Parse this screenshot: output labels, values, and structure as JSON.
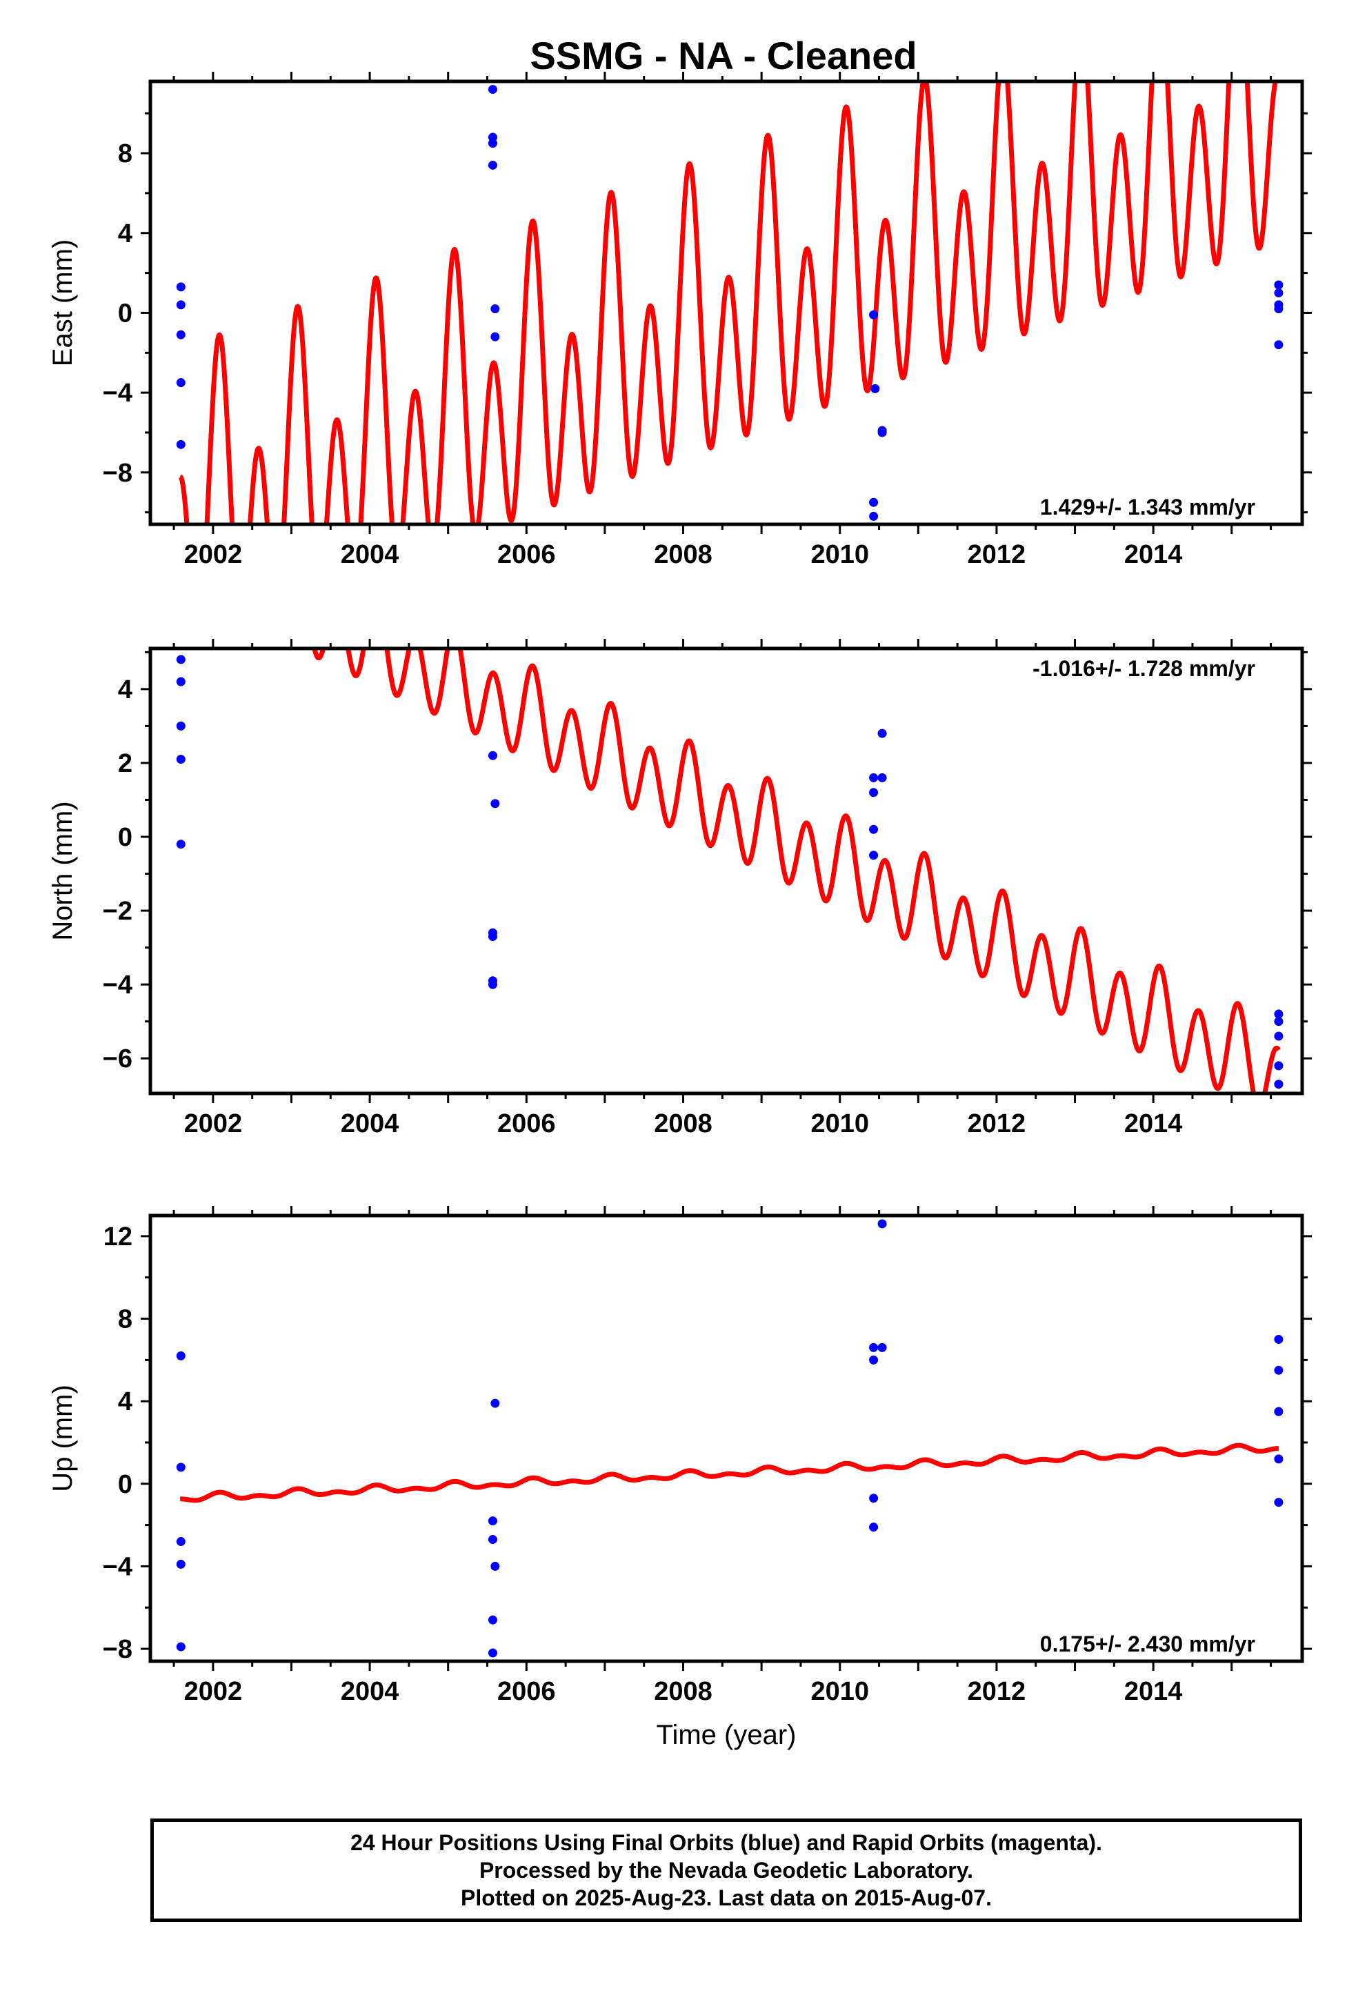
{
  "title": "SSMG  - NA - Cleaned",
  "footer": {
    "line1": "24 Hour Positions Using Final Orbits (blue) and Rapid Orbits (magenta).",
    "line2": "Processed by the Nevada Geodetic Laboratory.",
    "line3": "Plotted on 2025-Aug-23. Last data on 2015-Aug-07."
  },
  "colors": {
    "data_points": "#0000ff",
    "model_curve": "#ff0000",
    "frame": "#000000"
  },
  "chart_data": [
    {
      "type": "scatter",
      "ylabel": "East (mm)",
      "xlim": [
        2001.2,
        2015.9
      ],
      "ylim": [
        -10.6,
        11.6
      ],
      "x_ticks": [
        2002,
        2004,
        2006,
        2008,
        2010,
        2012,
        2014
      ],
      "y_ticks": [
        -8,
        -4,
        0,
        4,
        8
      ],
      "rate_text": "1.429+/- 1.343 mm/yr",
      "rate_position": "bottom-right",
      "model": {
        "intercept": -10.62,
        "slope": 1.429,
        "annual_amplitude": 3.2,
        "semiannual_amplitude": 5.6,
        "range": [
          2001.58,
          2015.6
        ]
      },
      "points": [
        {
          "x": 2001.59,
          "y": 1.3
        },
        {
          "x": 2001.59,
          "y": 0.4
        },
        {
          "x": 2001.59,
          "y": -1.1
        },
        {
          "x": 2001.59,
          "y": -3.5
        },
        {
          "x": 2001.59,
          "y": -6.6
        },
        {
          "x": 2005.57,
          "y": 11.2
        },
        {
          "x": 2005.57,
          "y": 8.8
        },
        {
          "x": 2005.57,
          "y": 8.5
        },
        {
          "x": 2005.57,
          "y": 7.4
        },
        {
          "x": 2005.6,
          "y": 0.2
        },
        {
          "x": 2005.6,
          "y": -1.2
        },
        {
          "x": 2010.43,
          "y": -0.1
        },
        {
          "x": 2010.45,
          "y": -3.8
        },
        {
          "x": 2010.43,
          "y": -9.5
        },
        {
          "x": 2010.43,
          "y": -10.2
        },
        {
          "x": 2010.54,
          "y": -5.9
        },
        {
          "x": 2010.54,
          "y": -6.0
        },
        {
          "x": 2015.6,
          "y": 1.4
        },
        {
          "x": 2015.6,
          "y": 1.0
        },
        {
          "x": 2015.6,
          "y": 0.4
        },
        {
          "x": 2015.6,
          "y": 0.2
        },
        {
          "x": 2015.6,
          "y": -1.6
        }
      ]
    },
    {
      "type": "scatter",
      "ylabel": "North (mm)",
      "xlim": [
        2001.2,
        2015.9
      ],
      "ylim": [
        -6.95,
        5.1
      ],
      "x_ticks": [
        2002,
        2004,
        2006,
        2008,
        2010,
        2012,
        2014
      ],
      "y_ticks": [
        -6,
        -4,
        -2,
        0,
        2,
        4
      ],
      "rate_text": "-1.016+/- 1.728 mm/yr",
      "rate_position": "top-right",
      "model": {
        "intercept": 7.75,
        "slope": -1.016,
        "annual_amplitude": 0.35,
        "semiannual_amplitude": 1.1,
        "range": [
          2001.58,
          2015.6
        ]
      },
      "points": [
        {
          "x": 2001.59,
          "y": 4.8
        },
        {
          "x": 2001.59,
          "y": 4.2
        },
        {
          "x": 2001.59,
          "y": 3.0
        },
        {
          "x": 2001.59,
          "y": 2.1
        },
        {
          "x": 2001.59,
          "y": -0.2
        },
        {
          "x": 2005.57,
          "y": 2.2
        },
        {
          "x": 2005.6,
          "y": 0.9
        },
        {
          "x": 2005.57,
          "y": -2.6
        },
        {
          "x": 2005.57,
          "y": -2.7
        },
        {
          "x": 2005.57,
          "y": -3.9
        },
        {
          "x": 2005.57,
          "y": -4.0
        },
        {
          "x": 2010.43,
          "y": 1.6
        },
        {
          "x": 2010.43,
          "y": 1.2
        },
        {
          "x": 2010.43,
          "y": 0.2
        },
        {
          "x": 2010.43,
          "y": -0.5
        },
        {
          "x": 2010.54,
          "y": 2.8
        },
        {
          "x": 2010.54,
          "y": 1.6
        },
        {
          "x": 2015.6,
          "y": -4.8
        },
        {
          "x": 2015.6,
          "y": -5.0
        },
        {
          "x": 2015.6,
          "y": -5.4
        },
        {
          "x": 2015.6,
          "y": -6.2
        },
        {
          "x": 2015.6,
          "y": -6.7
        }
      ]
    },
    {
      "type": "scatter",
      "ylabel": "Up (mm)",
      "xlabel": "Time (year)",
      "xlim": [
        2001.2,
        2015.9
      ],
      "ylim": [
        -8.6,
        13.0
      ],
      "x_ticks": [
        2002,
        2004,
        2006,
        2008,
        2010,
        2012,
        2014
      ],
      "y_ticks": [
        -8,
        -4,
        0,
        4,
        8,
        12
      ],
      "rate_text": "0.175+/- 2.430 mm/yr",
      "rate_position": "bottom-right",
      "model": {
        "intercept": -0.72,
        "slope": 0.175,
        "annual_amplitude": 0.12,
        "semiannual_amplitude": 0.1,
        "range": [
          2001.58,
          2015.6
        ]
      },
      "points": [
        {
          "x": 2001.59,
          "y": 6.2
        },
        {
          "x": 2001.59,
          "y": 0.8
        },
        {
          "x": 2001.59,
          "y": -2.8
        },
        {
          "x": 2001.59,
          "y": -3.9
        },
        {
          "x": 2001.59,
          "y": -7.9
        },
        {
          "x": 2005.6,
          "y": 3.9
        },
        {
          "x": 2005.57,
          "y": -1.8
        },
        {
          "x": 2005.57,
          "y": -2.7
        },
        {
          "x": 2005.6,
          "y": -4.0
        },
        {
          "x": 2005.57,
          "y": -6.6
        },
        {
          "x": 2005.57,
          "y": -8.2
        },
        {
          "x": 2010.43,
          "y": 6.6
        },
        {
          "x": 2010.43,
          "y": 6.0
        },
        {
          "x": 2010.43,
          "y": -0.7
        },
        {
          "x": 2010.43,
          "y": -2.1
        },
        {
          "x": 2010.54,
          "y": 12.6
        },
        {
          "x": 2010.54,
          "y": 6.6
        },
        {
          "x": 2015.6,
          "y": 7.0
        },
        {
          "x": 2015.6,
          "y": 5.5
        },
        {
          "x": 2015.6,
          "y": 3.5
        },
        {
          "x": 2015.6,
          "y": 1.2
        },
        {
          "x": 2015.6,
          "y": -0.9
        }
      ]
    }
  ]
}
